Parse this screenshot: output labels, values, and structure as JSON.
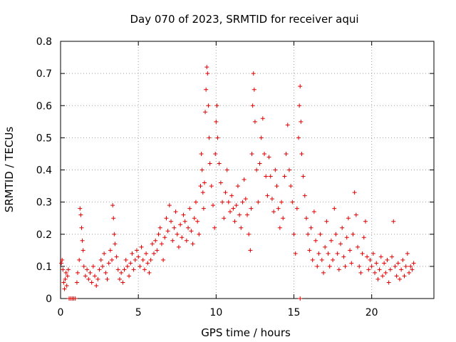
{
  "chart_data": {
    "type": "scatter",
    "title": "Day 070 of 2023, SRMTID for receiver aqui",
    "xlabel": "GPS time / hours",
    "ylabel": "SRMTID / TECUs",
    "xlim": [
      0,
      24
    ],
    "ylim": [
      0,
      0.8
    ],
    "xticks": [
      0,
      5,
      10,
      15,
      20
    ],
    "xtick_labels": [
      "0",
      "5",
      "10",
      "15",
      "20"
    ],
    "yticks": [
      0,
      0.1,
      0.2,
      0.3,
      0.4,
      0.5,
      0.6,
      0.7,
      0.8
    ],
    "ytick_labels": [
      "0",
      "0.1",
      "0.2",
      "0.3",
      "0.4",
      "0.5",
      "0.6",
      "0.7",
      "0.8"
    ],
    "grid": true,
    "marker": "plus",
    "color": "#e00000",
    "series": [
      {
        "name": "SRMTID",
        "points": [
          [
            0.05,
            0.11
          ],
          [
            0.1,
            0.12
          ],
          [
            0.15,
            0.09
          ],
          [
            0.2,
            0.05
          ],
          [
            0.25,
            0.03
          ],
          [
            0.3,
            0.06
          ],
          [
            0.35,
            0.08
          ],
          [
            0.4,
            0.04
          ],
          [
            0.45,
            0.07
          ],
          [
            0.5,
            0.09
          ],
          [
            0.55,
            0.0
          ],
          [
            0.65,
            0.0
          ],
          [
            0.75,
            0.0
          ],
          [
            0.85,
            0.0
          ],
          [
            0.95,
            0.0
          ],
          [
            1.05,
            0.05
          ],
          [
            1.1,
            0.08
          ],
          [
            1.2,
            0.12
          ],
          [
            1.25,
            0.28
          ],
          [
            1.3,
            0.26
          ],
          [
            1.35,
            0.22
          ],
          [
            1.4,
            0.18
          ],
          [
            1.45,
            0.15
          ],
          [
            1.5,
            0.1
          ],
          [
            1.6,
            0.07
          ],
          [
            1.7,
            0.09
          ],
          [
            1.8,
            0.06
          ],
          [
            1.9,
            0.08
          ],
          [
            2.0,
            0.05
          ],
          [
            2.1,
            0.1
          ],
          [
            2.2,
            0.07
          ],
          [
            2.3,
            0.04
          ],
          [
            2.4,
            0.06
          ],
          [
            2.5,
            0.09
          ],
          [
            2.6,
            0.12
          ],
          [
            2.7,
            0.1
          ],
          [
            2.8,
            0.14
          ],
          [
            2.9,
            0.08
          ],
          [
            3.0,
            0.06
          ],
          [
            3.1,
            0.11
          ],
          [
            3.2,
            0.15
          ],
          [
            3.3,
            0.12
          ],
          [
            3.35,
            0.29
          ],
          [
            3.4,
            0.25
          ],
          [
            3.45,
            0.2
          ],
          [
            3.5,
            0.17
          ],
          [
            3.6,
            0.13
          ],
          [
            3.7,
            0.09
          ],
          [
            3.8,
            0.06
          ],
          [
            3.9,
            0.08
          ],
          [
            4.0,
            0.05
          ],
          [
            4.1,
            0.09
          ],
          [
            4.2,
            0.12
          ],
          [
            4.3,
            0.1
          ],
          [
            4.4,
            0.07
          ],
          [
            4.5,
            0.11
          ],
          [
            4.6,
            0.14
          ],
          [
            4.7,
            0.09
          ],
          [
            4.8,
            0.12
          ],
          [
            4.9,
            0.15
          ],
          [
            5.0,
            0.13
          ],
          [
            5.1,
            0.1
          ],
          [
            5.2,
            0.16
          ],
          [
            5.3,
            0.12
          ],
          [
            5.4,
            0.09
          ],
          [
            5.5,
            0.14
          ],
          [
            5.6,
            0.11
          ],
          [
            5.7,
            0.08
          ],
          [
            5.8,
            0.12
          ],
          [
            5.9,
            0.17
          ],
          [
            6.0,
            0.14
          ],
          [
            6.1,
            0.18
          ],
          [
            6.2,
            0.15
          ],
          [
            6.3,
            0.2
          ],
          [
            6.4,
            0.22
          ],
          [
            6.5,
            0.17
          ],
          [
            6.6,
            0.12
          ],
          [
            6.7,
            0.19
          ],
          [
            6.8,
            0.25
          ],
          [
            6.9,
            0.21
          ],
          [
            7.0,
            0.29
          ],
          [
            7.1,
            0.24
          ],
          [
            7.2,
            0.18
          ],
          [
            7.3,
            0.22
          ],
          [
            7.4,
            0.27
          ],
          [
            7.5,
            0.2
          ],
          [
            7.6,
            0.16
          ],
          [
            7.7,
            0.23
          ],
          [
            7.8,
            0.19
          ],
          [
            7.9,
            0.26
          ],
          [
            8.0,
            0.24
          ],
          [
            8.1,
            0.18
          ],
          [
            8.2,
            0.22
          ],
          [
            8.3,
            0.28
          ],
          [
            8.4,
            0.21
          ],
          [
            8.5,
            0.17
          ],
          [
            8.6,
            0.25
          ],
          [
            8.7,
            0.3
          ],
          [
            8.8,
            0.24
          ],
          [
            8.9,
            0.2
          ],
          [
            9.0,
            0.35
          ],
          [
            9.05,
            0.45
          ],
          [
            9.1,
            0.4
          ],
          [
            9.15,
            0.33
          ],
          [
            9.2,
            0.28
          ],
          [
            9.25,
            0.36
          ],
          [
            9.3,
            0.58
          ],
          [
            9.35,
            0.65
          ],
          [
            9.4,
            0.72
          ],
          [
            9.45,
            0.7
          ],
          [
            9.5,
            0.6
          ],
          [
            9.55,
            0.5
          ],
          [
            9.6,
            0.42
          ],
          [
            9.7,
            0.35
          ],
          [
            9.8,
            0.29
          ],
          [
            9.9,
            0.22
          ],
          [
            9.95,
            0.45
          ],
          [
            10.0,
            0.55
          ],
          [
            10.05,
            0.6
          ],
          [
            10.1,
            0.5
          ],
          [
            10.2,
            0.42
          ],
          [
            10.3,
            0.36
          ],
          [
            10.4,
            0.3
          ],
          [
            10.5,
            0.25
          ],
          [
            10.6,
            0.33
          ],
          [
            10.7,
            0.4
          ],
          [
            10.8,
            0.3
          ],
          [
            10.9,
            0.27
          ],
          [
            11.0,
            0.32
          ],
          [
            11.1,
            0.28
          ],
          [
            11.2,
            0.24
          ],
          [
            11.3,
            0.29
          ],
          [
            11.4,
            0.35
          ],
          [
            11.5,
            0.26
          ],
          [
            11.6,
            0.22
          ],
          [
            11.7,
            0.3
          ],
          [
            11.8,
            0.37
          ],
          [
            11.9,
            0.31
          ],
          [
            12.0,
            0.26
          ],
          [
            12.1,
            0.2
          ],
          [
            12.2,
            0.15
          ],
          [
            12.25,
            0.28
          ],
          [
            12.3,
            0.45
          ],
          [
            12.35,
            0.6
          ],
          [
            12.4,
            0.7
          ],
          [
            12.45,
            0.65
          ],
          [
            12.5,
            0.55
          ],
          [
            12.6,
            0.4
          ],
          [
            12.7,
            0.3
          ],
          [
            12.8,
            0.42
          ],
          [
            12.9,
            0.5
          ],
          [
            13.0,
            0.56
          ],
          [
            13.1,
            0.45
          ],
          [
            13.2,
            0.38
          ],
          [
            13.3,
            0.32
          ],
          [
            13.4,
            0.44
          ],
          [
            13.5,
            0.38
          ],
          [
            13.6,
            0.31
          ],
          [
            13.7,
            0.27
          ],
          [
            13.8,
            0.4
          ],
          [
            13.9,
            0.35
          ],
          [
            14.0,
            0.28
          ],
          [
            14.1,
            0.22
          ],
          [
            14.2,
            0.3
          ],
          [
            14.3,
            0.25
          ],
          [
            14.4,
            0.38
          ],
          [
            14.5,
            0.45
          ],
          [
            14.6,
            0.54
          ],
          [
            14.7,
            0.4
          ],
          [
            14.8,
            0.35
          ],
          [
            14.9,
            0.3
          ],
          [
            15.0,
            0.2
          ],
          [
            15.1,
            0.14
          ],
          [
            15.2,
            0.28
          ],
          [
            15.3,
            0.5
          ],
          [
            15.35,
            0.6
          ],
          [
            15.4,
            0.66
          ],
          [
            15.45,
            0.55
          ],
          [
            15.5,
            0.45
          ],
          [
            15.6,
            0.38
          ],
          [
            15.7,
            0.32
          ],
          [
            15.8,
            0.25
          ],
          [
            15.9,
            0.2
          ],
          [
            15.4,
            0.0
          ],
          [
            16.0,
            0.15
          ],
          [
            16.1,
            0.22
          ],
          [
            16.2,
            0.12
          ],
          [
            16.3,
            0.27
          ],
          [
            16.4,
            0.18
          ],
          [
            16.5,
            0.1
          ],
          [
            16.6,
            0.14
          ],
          [
            16.7,
            0.2
          ],
          [
            16.8,
            0.12
          ],
          [
            16.9,
            0.08
          ],
          [
            17.0,
            0.16
          ],
          [
            17.1,
            0.24
          ],
          [
            17.2,
            0.14
          ],
          [
            17.3,
            0.1
          ],
          [
            17.4,
            0.18
          ],
          [
            17.5,
            0.12
          ],
          [
            17.6,
            0.28
          ],
          [
            17.7,
            0.2
          ],
          [
            17.8,
            0.14
          ],
          [
            17.9,
            0.09
          ],
          [
            18.0,
            0.17
          ],
          [
            18.1,
            0.22
          ],
          [
            18.2,
            0.13
          ],
          [
            18.3,
            0.1
          ],
          [
            18.4,
            0.19
          ],
          [
            18.5,
            0.25
          ],
          [
            18.6,
            0.15
          ],
          [
            18.7,
            0.11
          ],
          [
            18.8,
            0.2
          ],
          [
            18.9,
            0.33
          ],
          [
            19.0,
            0.26
          ],
          [
            19.1,
            0.16
          ],
          [
            19.2,
            0.1
          ],
          [
            19.3,
            0.08
          ],
          [
            19.4,
            0.14
          ],
          [
            19.5,
            0.19
          ],
          [
            19.6,
            0.24
          ],
          [
            19.7,
            0.13
          ],
          [
            19.8,
            0.09
          ],
          [
            19.9,
            0.12
          ],
          [
            20.0,
            0.1
          ],
          [
            20.1,
            0.14
          ],
          [
            20.2,
            0.08
          ],
          [
            20.3,
            0.11
          ],
          [
            20.4,
            0.06
          ],
          [
            20.5,
            0.09
          ],
          [
            20.6,
            0.13
          ],
          [
            20.7,
            0.07
          ],
          [
            20.8,
            0.11
          ],
          [
            20.9,
            0.08
          ],
          [
            21.0,
            0.12
          ],
          [
            21.1,
            0.05
          ],
          [
            21.2,
            0.09
          ],
          [
            21.3,
            0.13
          ],
          [
            21.4,
            0.24
          ],
          [
            21.5,
            0.1
          ],
          [
            21.6,
            0.07
          ],
          [
            21.7,
            0.11
          ],
          [
            21.8,
            0.06
          ],
          [
            21.9,
            0.09
          ],
          [
            22.0,
            0.12
          ],
          [
            22.1,
            0.07
          ],
          [
            22.2,
            0.1
          ],
          [
            22.3,
            0.14
          ],
          [
            22.4,
            0.08
          ],
          [
            22.5,
            0.1
          ],
          [
            22.6,
            0.09
          ],
          [
            22.7,
            0.11
          ]
        ]
      }
    ]
  }
}
